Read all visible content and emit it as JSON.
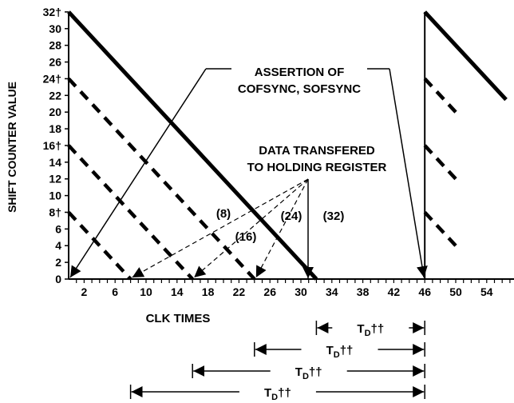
{
  "chart_data": {
    "type": "line",
    "title": "",
    "xlabel": "CLK TIMES",
    "ylabel": "SHIFT COUNTER VALUE",
    "xlim": [
      0,
      58
    ],
    "ylim": [
      0,
      32
    ],
    "x_ticks": [
      2,
      6,
      10,
      14,
      18,
      22,
      26,
      30,
      34,
      38,
      42,
      46,
      50,
      54
    ],
    "y_ticks": [
      "0",
      "2",
      "4",
      "6",
      "8†",
      "10",
      "12",
      "14",
      "16†",
      "18",
      "20",
      "22",
      "24†",
      "26",
      "28",
      "30",
      "32†"
    ],
    "series": [
      {
        "style": "solid",
        "points": [
          [
            0,
            32
          ],
          [
            32,
            0
          ]
        ]
      },
      {
        "style": "dashed",
        "points": [
          [
            0,
            24
          ],
          [
            24,
            0
          ]
        ]
      },
      {
        "style": "dashed",
        "points": [
          [
            0,
            16
          ],
          [
            16,
            0
          ]
        ]
      },
      {
        "style": "dashed",
        "points": [
          [
            0,
            8
          ],
          [
            8,
            0
          ]
        ]
      },
      {
        "style": "solid",
        "points": [
          [
            46,
            32
          ],
          [
            56.5,
            21.5
          ]
        ]
      },
      {
        "style": "dashed",
        "points": [
          [
            46,
            24
          ],
          [
            50.5,
            19.5
          ]
        ]
      },
      {
        "style": "dashed",
        "points": [
          [
            46,
            16
          ],
          [
            50.5,
            11.5
          ]
        ]
      },
      {
        "style": "dashed",
        "points": [
          [
            46,
            8
          ],
          [
            50.5,
            3.5
          ]
        ]
      }
    ],
    "annotations": {
      "assertion": [
        "ASSERTION OF",
        "COFSYNC, SOFSYNC"
      ],
      "transfer": [
        "DATA TRANSFERED",
        "TO HOLDING REGISTER"
      ],
      "counts": [
        "(8)",
        "(16)",
        "(24)",
        "(32)"
      ],
      "td_label": "T",
      "td_subscript": "D",
      "td_suffix": "††",
      "td_spans": [
        [
          32,
          46
        ],
        [
          24,
          46
        ],
        [
          16,
          46
        ],
        [
          8,
          46
        ]
      ]
    }
  }
}
